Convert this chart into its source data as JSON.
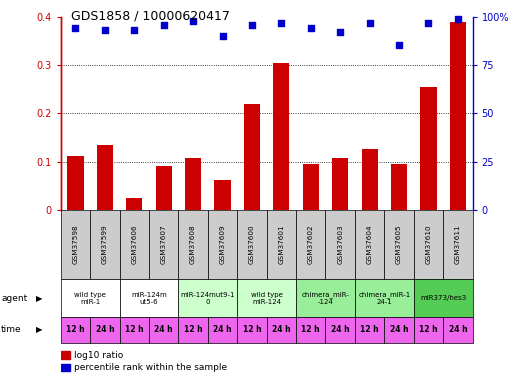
{
  "title": "GDS1858 / 10000620417",
  "samples": [
    "GSM37598",
    "GSM37599",
    "GSM37606",
    "GSM37607",
    "GSM37608",
    "GSM37609",
    "GSM37600",
    "GSM37601",
    "GSM37602",
    "GSM37603",
    "GSM37604",
    "GSM37605",
    "GSM37610",
    "GSM37611"
  ],
  "bar_values": [
    0.112,
    0.135,
    0.025,
    0.092,
    0.108,
    0.062,
    0.22,
    0.305,
    0.095,
    0.108,
    0.127,
    0.095,
    0.255,
    0.39
  ],
  "scatter_pct": [
    94,
    93,
    93,
    96,
    98,
    90,
    96,
    97,
    94,
    92,
    97,
    85.5,
    97,
    99
  ],
  "bar_color": "#cc0000",
  "scatter_color": "#0000cc",
  "ylim_left": [
    0,
    0.4
  ],
  "ylim_right": [
    0,
    100
  ],
  "yticks_left": [
    0.0,
    0.1,
    0.2,
    0.3,
    0.4
  ],
  "yticks_right": [
    0,
    25,
    50,
    75,
    100
  ],
  "ytick_labels_left": [
    "0",
    "0.1",
    "0.2",
    "0.3",
    "0.4"
  ],
  "ytick_labels_right": [
    "0",
    "25",
    "50",
    "75",
    "100%"
  ],
  "agent_groups": [
    {
      "label": "wild type\nmiR-1",
      "cols": [
        0,
        1
      ],
      "color": "#ffffff"
    },
    {
      "label": "miR-124m\nut5-6",
      "cols": [
        2,
        3
      ],
      "color": "#ffffff"
    },
    {
      "label": "miR-124mut9-1\n0",
      "cols": [
        4,
        5
      ],
      "color": "#ccffcc"
    },
    {
      "label": "wild type\nmiR-124",
      "cols": [
        6,
        7
      ],
      "color": "#ccffcc"
    },
    {
      "label": "chimera_miR-\n-124",
      "cols": [
        8,
        9
      ],
      "color": "#99ee99"
    },
    {
      "label": "chimera_miR-1\n24-1",
      "cols": [
        10,
        11
      ],
      "color": "#99ee99"
    },
    {
      "label": "miR373/hes3",
      "cols": [
        12,
        13
      ],
      "color": "#55cc55"
    }
  ],
  "time_labels": [
    "12 h",
    "24 h",
    "12 h",
    "24 h",
    "12 h",
    "24 h",
    "12 h",
    "24 h",
    "12 h",
    "24 h",
    "12 h",
    "24 h",
    "12 h",
    "24 h"
  ],
  "time_color": "#ee66ee",
  "sample_bg_color": "#cccccc",
  "legend_bar_label": "log10 ratio",
  "legend_scatter_label": "percentile rank within the sample",
  "bg_color": "#ffffff"
}
